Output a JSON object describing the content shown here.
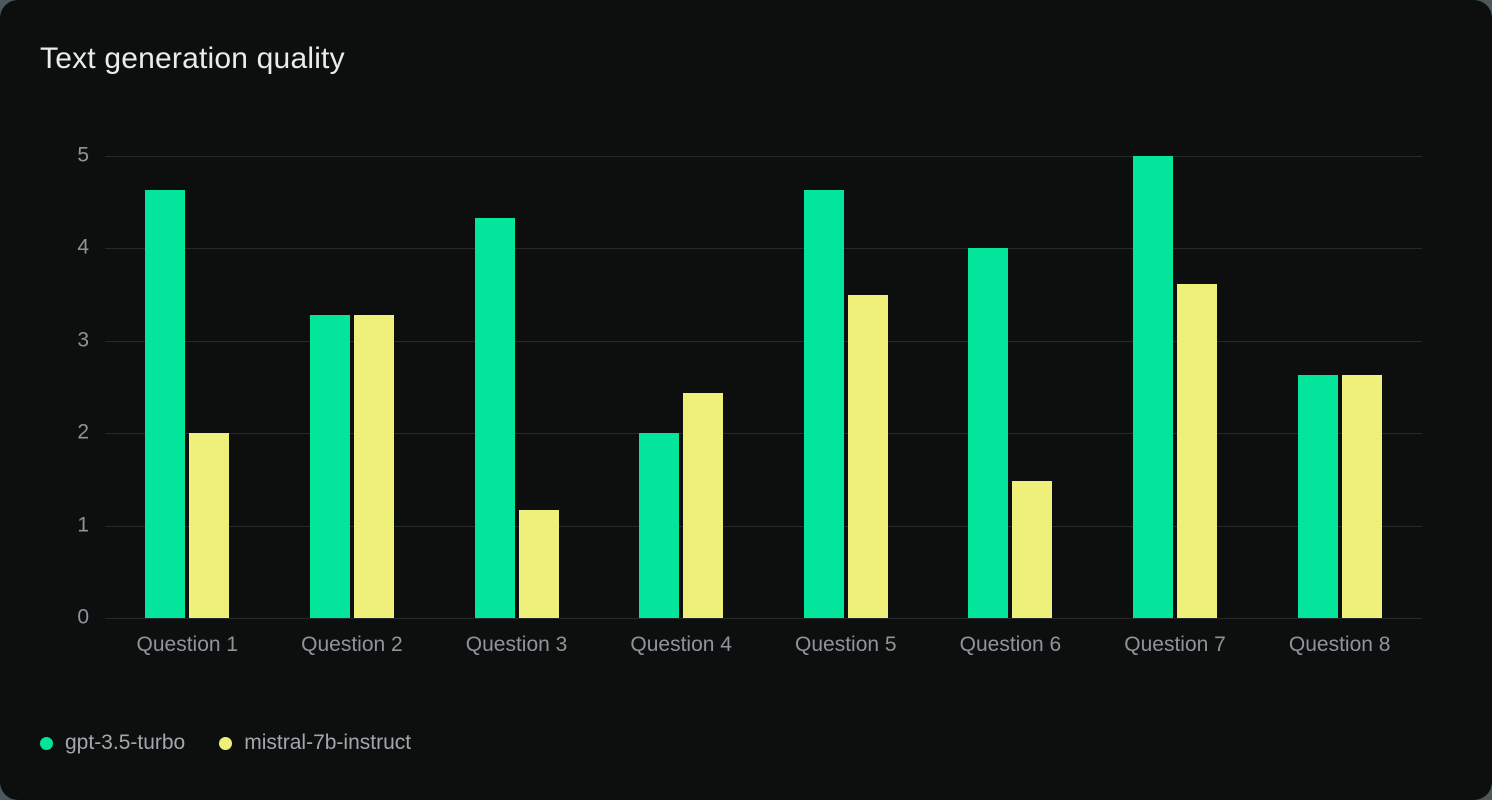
{
  "page": {
    "outer_background": "#4d585c",
    "card_background": "#0d0f0f"
  },
  "chart": {
    "title": "Text generation quality"
  },
  "chart_data": {
    "type": "bar",
    "title": "Text generation quality",
    "categories": [
      "Question 1",
      "Question 2",
      "Question 3",
      "Question 4",
      "Question 5",
      "Question 6",
      "Question 7",
      "Question 8"
    ],
    "series": [
      {
        "name": "gpt-3.5-turbo",
        "color": "#02e59a",
        "values": [
          4.63,
          3.28,
          4.33,
          2.0,
          4.63,
          4.0,
          5.0,
          2.63
        ]
      },
      {
        "name": "mistral-7b-instruct",
        "color": "#eef07a",
        "values": [
          2.0,
          3.28,
          1.17,
          2.43,
          3.5,
          1.48,
          3.61,
          2.63
        ]
      }
    ],
    "xlabel": "",
    "ylabel": "",
    "ylim": [
      0,
      5
    ],
    "yticks": [
      0,
      1,
      2,
      3,
      4,
      5
    ],
    "grid": true,
    "gridline_color": "#26292b",
    "axis_text_color": "#8e9499",
    "legend_position": "bottom-left"
  }
}
